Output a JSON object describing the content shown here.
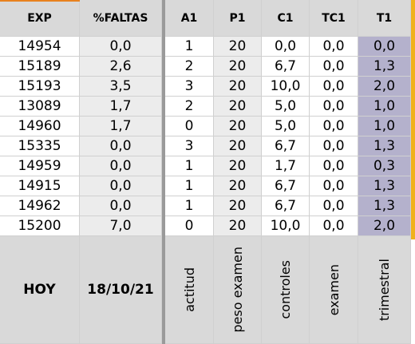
{
  "headers": [
    "EXP",
    "%FALTAS",
    "A1",
    "P1",
    "C1",
    "TC1",
    "T1"
  ],
  "rows": [
    [
      "14954",
      "0,0",
      "1",
      "20",
      "0,0",
      "0,0",
      "0,0"
    ],
    [
      "15189",
      "2,6",
      "2",
      "20",
      "6,7",
      "0,0",
      "1,3"
    ],
    [
      "15193",
      "3,5",
      "3",
      "20",
      "10,0",
      "0,0",
      "2,0"
    ],
    [
      "13089",
      "1,7",
      "2",
      "20",
      "5,0",
      "0,0",
      "1,0"
    ],
    [
      "14960",
      "1,7",
      "0",
      "20",
      "5,0",
      "0,0",
      "1,0"
    ],
    [
      "15335",
      "0,0",
      "3",
      "20",
      "6,7",
      "0,0",
      "1,3"
    ],
    [
      "14959",
      "0,0",
      "1",
      "20",
      "1,7",
      "0,0",
      "0,3"
    ],
    [
      "14915",
      "0,0",
      "1",
      "20",
      "6,7",
      "0,0",
      "1,3"
    ],
    [
      "14962",
      "0,0",
      "1",
      "20",
      "6,7",
      "0,0",
      "1,3"
    ],
    [
      "15200",
      "7,0",
      "0",
      "20",
      "10,0",
      "0,0",
      "2,0"
    ]
  ],
  "footer": {
    "label": "HOY",
    "date": "18/10/21",
    "descriptions": [
      "actitud",
      "peso examen",
      "controles",
      "examen",
      "trimestral"
    ]
  },
  "colors": {
    "header_bg": "#d9d9d9",
    "alt_col_bg": "#ececec",
    "trimestral_bg": "#b4b1cc",
    "accent_orange": "#e8821f",
    "accent_yellow": "#f0b21c"
  }
}
